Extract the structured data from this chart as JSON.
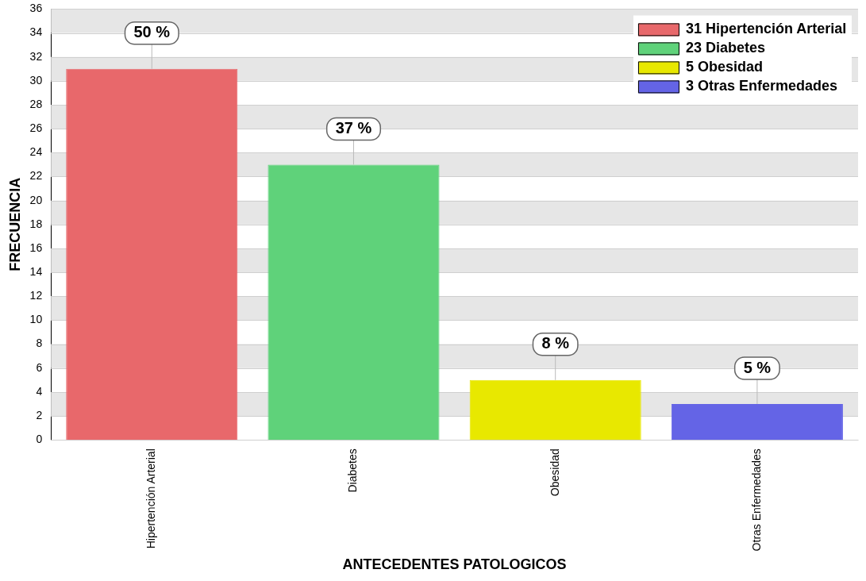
{
  "chart_data": {
    "type": "bar",
    "xlabel": "ANTECEDENTES PATOLOGICOS",
    "ylabel": "FRECUENCIA",
    "categories": [
      "Hipertención Arterial",
      "Diabetes",
      "Obesidad",
      "Otras Enfermedades"
    ],
    "series": [
      {
        "name": "31 Hipertención Arterial",
        "color": "#e8686b",
        "values": [
          31,
          null,
          null,
          null
        ]
      },
      {
        "name": "23 Diabetes",
        "color": "#5fd27a",
        "values": [
          null,
          23,
          null,
          null
        ]
      },
      {
        "name": "5 Obesidad",
        "color": "#e8e800",
        "values": [
          null,
          null,
          5,
          null
        ]
      },
      {
        "name": "3 Otras Enfermedades",
        "color": "#6464e6",
        "values": [
          null,
          null,
          null,
          3
        ]
      }
    ],
    "annotations": [
      {
        "text": "50 %",
        "x": "Hipertención Arterial",
        "y": 31
      },
      {
        "text": "37 %",
        "x": "Diabetes",
        "y": 23
      },
      {
        "text": "8 %",
        "x": "Obesidad",
        "y": 5
      },
      {
        "text": "5 %",
        "x": "Otras Enfermedades",
        "y": 3
      }
    ],
    "ylim": [
      0,
      36
    ],
    "yticks": [
      0,
      2,
      4,
      6,
      8,
      10,
      12,
      14,
      16,
      18,
      20,
      22,
      24,
      26,
      28,
      30,
      32,
      34,
      36
    ],
    "grid": "y",
    "legend": "top right"
  }
}
